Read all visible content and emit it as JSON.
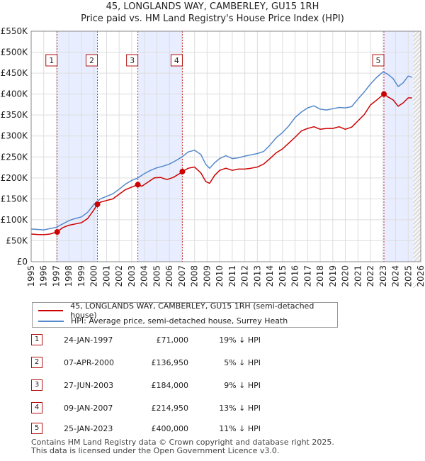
{
  "chart_data": {
    "type": "line",
    "title": "45, LONGLANDS WAY, CAMBERLEY, GU15 1RH",
    "subtitle": "Price paid vs. HM Land Registry's House Price Index (HPI)",
    "xlim": [
      1995,
      2026
    ],
    "ylim": [
      0,
      550000
    ],
    "y_ticks": [
      0,
      50000,
      100000,
      150000,
      200000,
      250000,
      300000,
      350000,
      400000,
      450000,
      500000,
      550000
    ],
    "y_tick_labels": [
      "£0",
      "£50K",
      "£100K",
      "£150K",
      "£200K",
      "£250K",
      "£300K",
      "£350K",
      "£400K",
      "£450K",
      "£500K",
      "£550K"
    ],
    "x_ticks": [
      1995,
      1996,
      1997,
      1998,
      1999,
      2000,
      2001,
      2002,
      2003,
      2004,
      2005,
      2006,
      2007,
      2008,
      2009,
      2010,
      2011,
      2012,
      2013,
      2014,
      2015,
      2016,
      2017,
      2018,
      2019,
      2020,
      2021,
      2022,
      2023,
      2024,
      2025,
      2026
    ],
    "x_tick_labels": [
      "1995",
      "1996",
      "1997",
      "1998",
      "1999",
      "2000",
      "2001",
      "2002",
      "2003",
      "2004",
      "2005",
      "2006",
      "2007",
      "2008",
      "2009",
      "2010",
      "2011",
      "2012",
      "2013",
      "2014",
      "2015",
      "2016",
      "2017",
      "2018",
      "2019",
      "2020",
      "2021",
      "2022",
      "2023",
      "2024",
      "2025",
      "2026"
    ],
    "data_end": 2025.4,
    "series": [
      {
        "name": "45, LONGLANDS WAY, CAMBERLEY, GU15 1RH (semi-detached house)",
        "color": "#cc0000",
        "x": [
          1995.0,
          1995.5,
          1996.0,
          1996.5,
          1997.07,
          1997.5,
          1998.0,
          1998.5,
          1999.0,
          1999.5,
          2000.0,
          2000.27,
          2000.5,
          2001.0,
          2001.5,
          2002.0,
          2002.5,
          2003.0,
          2003.49,
          2003.8,
          2004.3,
          2004.8,
          2005.3,
          2005.8,
          2006.3,
          2006.8,
          2007.03,
          2007.5,
          2008.0,
          2008.5,
          2008.9,
          2009.2,
          2009.6,
          2010.0,
          2010.5,
          2011.0,
          2011.5,
          2012.0,
          2012.5,
          2013.0,
          2013.5,
          2014.0,
          2014.5,
          2015.0,
          2015.5,
          2016.0,
          2016.5,
          2017.0,
          2017.5,
          2018.0,
          2018.5,
          2019.0,
          2019.5,
          2020.0,
          2020.5,
          2021.0,
          2021.5,
          2022.0,
          2022.5,
          2023.07,
          2023.4,
          2023.8,
          2024.2,
          2024.6,
          2025.0,
          2025.3
        ],
        "y": [
          66000,
          65000,
          64500,
          66000,
          71000,
          81000,
          87000,
          90000,
          93000,
          103000,
          124000,
          136950,
          142000,
          146000,
          150000,
          161000,
          172000,
          178000,
          184000,
          180000,
          190000,
          200000,
          201000,
          196000,
          201000,
          210000,
          214950,
          223000,
          226000,
          212000,
          191000,
          187000,
          206000,
          218000,
          223000,
          218000,
          221000,
          221000,
          223000,
          226000,
          233000,
          246000,
          260000,
          269000,
          283000,
          297000,
          312000,
          318000,
          322000,
          316000,
          318000,
          318000,
          322000,
          316000,
          321000,
          336000,
          351000,
          374000,
          386000,
          400000,
          393000,
          386000,
          371000,
          379000,
          391000,
          391000
        ]
      },
      {
        "name": "HPI: Average price, semi-detached house, Surrey Heath",
        "color": "#5588cc",
        "x": [
          1995.0,
          1995.5,
          1996.0,
          1996.5,
          1997.0,
          1997.5,
          1998.0,
          1998.5,
          1999.0,
          1999.5,
          2000.0,
          2000.5,
          2001.0,
          2001.5,
          2002.0,
          2002.5,
          2003.0,
          2003.5,
          2004.0,
          2004.5,
          2005.0,
          2005.5,
          2006.0,
          2006.5,
          2007.0,
          2007.5,
          2008.0,
          2008.5,
          2008.9,
          2009.2,
          2009.6,
          2010.0,
          2010.5,
          2011.0,
          2011.5,
          2012.0,
          2012.5,
          2013.0,
          2013.5,
          2014.0,
          2014.5,
          2015.0,
          2015.5,
          2016.0,
          2016.5,
          2017.0,
          2017.5,
          2018.0,
          2018.5,
          2019.0,
          2019.5,
          2020.0,
          2020.5,
          2021.0,
          2021.5,
          2022.0,
          2022.5,
          2023.0,
          2023.4,
          2023.8,
          2024.2,
          2024.6,
          2025.0,
          2025.3
        ],
        "y": [
          78000,
          77000,
          76000,
          79000,
          82000,
          90000,
          98000,
          103000,
          107000,
          118000,
          137000,
          150000,
          156000,
          162000,
          173000,
          185000,
          194000,
          200000,
          210000,
          218000,
          224000,
          228000,
          233000,
          241000,
          250000,
          262000,
          266000,
          256000,
          232000,
          223000,
          236000,
          246000,
          253000,
          246000,
          248000,
          252000,
          255000,
          258000,
          263000,
          278000,
          296000,
          308000,
          324000,
          344000,
          357000,
          367000,
          372000,
          364000,
          362000,
          365000,
          368000,
          367000,
          370000,
          388000,
          405000,
          424000,
          440000,
          453000,
          447000,
          437000,
          418000,
          427000,
          443000,
          440000
        ]
      }
    ],
    "sales": [
      {
        "id": "1",
        "x": 1997.07,
        "y": 71000
      },
      {
        "id": "2",
        "x": 2000.27,
        "y": 136950
      },
      {
        "id": "3",
        "x": 2003.49,
        "y": 184000
      },
      {
        "id": "4",
        "x": 2007.03,
        "y": 214950
      },
      {
        "id": "5",
        "x": 2023.07,
        "y": 400000
      }
    ],
    "legend_position": "bottom"
  },
  "legend": {
    "property_label": "45, LONGLANDS WAY, CAMBERLEY, GU15 1RH (semi-detached house)",
    "hpi_label": "HPI: Average price, semi-detached house, Surrey Heath",
    "property_color": "#cc0000",
    "hpi_color": "#5588cc"
  },
  "transactions": [
    {
      "num": "1",
      "date": "24-JAN-1997",
      "price": "£71,000",
      "hpi": "19% ↓ HPI"
    },
    {
      "num": "2",
      "date": "07-APR-2000",
      "price": "£136,950",
      "hpi": "5% ↓ HPI"
    },
    {
      "num": "3",
      "date": "27-JUN-2003",
      "price": "£184,000",
      "hpi": "9% ↓ HPI"
    },
    {
      "num": "4",
      "date": "09-JAN-2007",
      "price": "£214,950",
      "hpi": "13% ↓ HPI"
    },
    {
      "num": "5",
      "date": "25-JAN-2023",
      "price": "£400,000",
      "hpi": "11% ↓ HPI"
    }
  ],
  "footer": {
    "line1": "Contains HM Land Registry data © Crown copyright and database right 2025.",
    "line2": "This data is licensed under the Open Government Licence v3.0."
  }
}
